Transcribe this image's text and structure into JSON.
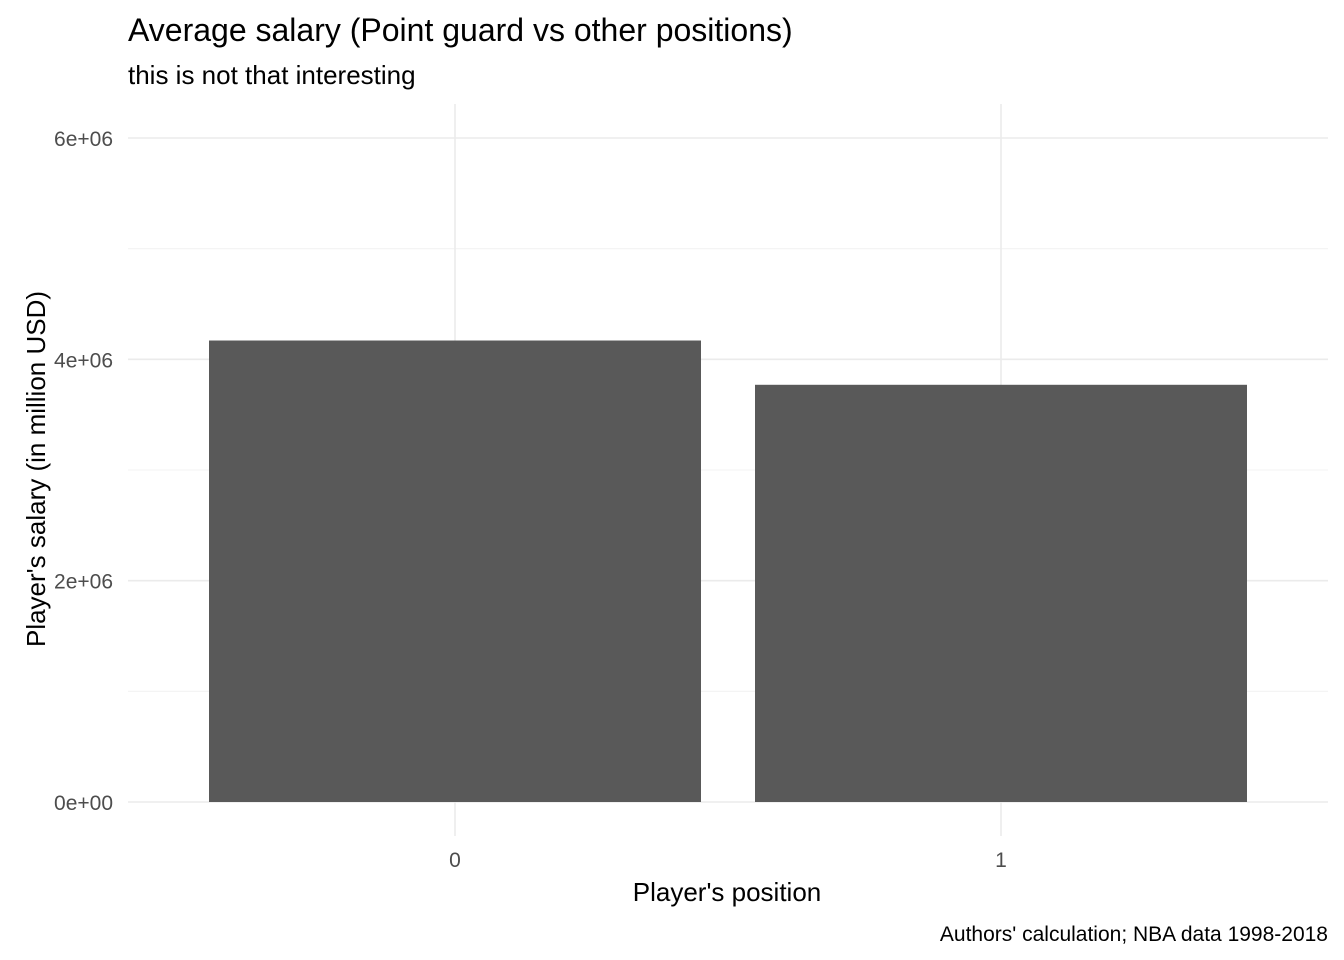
{
  "chart_data": {
    "type": "bar",
    "title": "Average salary (Point guard vs other positions)",
    "subtitle": "this is not that interesting",
    "xlabel": "Player's position",
    "ylabel": "Player's salary (in million USD)",
    "caption": "Authors' calculation; NBA data 1998-2018",
    "categories": [
      "0",
      "1"
    ],
    "values": [
      4170000,
      3770000
    ],
    "ylim": [
      0,
      6000000
    ],
    "yticks": [
      0,
      2000000,
      4000000,
      6000000
    ],
    "ytick_labels": [
      "0e+00",
      "2e+06",
      "4e+06",
      "6e+06"
    ],
    "bar_color": "#595959",
    "grid": true,
    "legend": "none"
  }
}
